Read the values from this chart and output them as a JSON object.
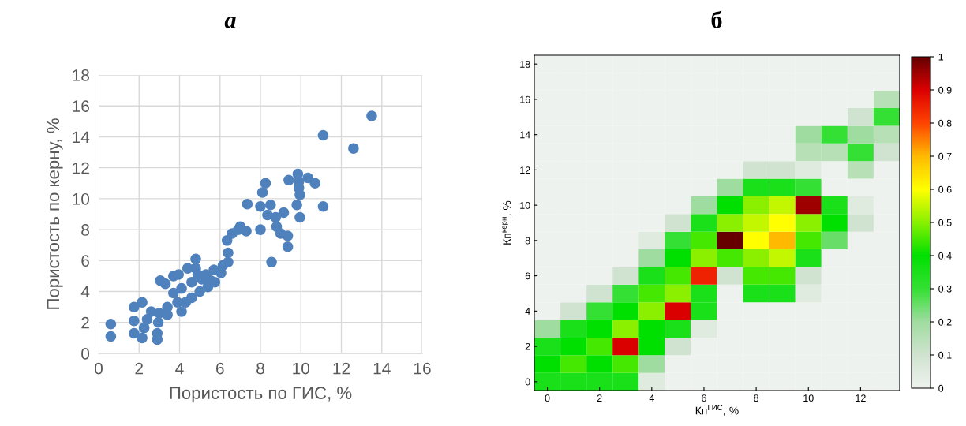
{
  "chart_data": [
    {
      "type": "scatter",
      "title": "а",
      "xlabel": "Пористость по ГИС, %",
      "ylabel": "Пористость по керну, %",
      "xlim": [
        0,
        16
      ],
      "ylim": [
        0,
        18
      ],
      "xticks": [
        0,
        2,
        4,
        6,
        8,
        10,
        12,
        14,
        16
      ],
      "yticks": [
        0,
        2,
        4,
        6,
        8,
        10,
        12,
        14,
        16,
        18
      ],
      "grid": true,
      "marker": "circle",
      "series": [
        {
          "color": "#4f81bd",
          "x": [
            0.6,
            0.6,
            1.75,
            2.15,
            1.75,
            1.75,
            2.15,
            2.25,
            2.4,
            2.6,
            2.9,
            2.9,
            2.95,
            3.0,
            3.05,
            3.3,
            3.4,
            3.4,
            3.7,
            3.7,
            3.95,
            3.9,
            4.1,
            4.1,
            4.3,
            4.4,
            4.6,
            4.6,
            4.8,
            4.8,
            4.9,
            5.0,
            5.1,
            5.3,
            5.4,
            5.55,
            5.7,
            5.75,
            6.05,
            6.15,
            6.4,
            6.4,
            6.35,
            6.6,
            6.9,
            7.0,
            7.3,
            7.35,
            8.0,
            8.0,
            8.1,
            8.25,
            8.5,
            8.35,
            8.75,
            8.8,
            9.0,
            9.35,
            9.35,
            8.55,
            9.15,
            9.4,
            9.85,
            9.9,
            9.9,
            9.95,
            9.8,
            9.95,
            10.35,
            10.7,
            11.1,
            11.1,
            12.6,
            13.5
          ],
          "values": [
            1.9,
            1.1,
            3.0,
            3.3,
            2.1,
            1.3,
            1.0,
            1.65,
            2.2,
            2.7,
            1.3,
            0.9,
            2.0,
            2.6,
            4.7,
            4.5,
            3.0,
            2.5,
            3.9,
            5.0,
            5.1,
            3.3,
            4.2,
            2.7,
            3.3,
            5.5,
            3.6,
            4.6,
            6.1,
            5.5,
            5.1,
            4.0,
            4.8,
            5.1,
            4.3,
            4.7,
            5.4,
            4.6,
            5.2,
            5.7,
            5.9,
            6.5,
            7.3,
            7.75,
            8.0,
            8.2,
            7.9,
            9.65,
            8.0,
            9.5,
            10.4,
            11.0,
            9.6,
            8.95,
            8.8,
            8.2,
            7.75,
            7.6,
            6.9,
            5.9,
            9.1,
            11.2,
            11.6,
            11.1,
            10.7,
            10.25,
            9.6,
            8.8,
            11.35,
            11.0,
            9.5,
            14.1,
            13.25,
            15.35
          ]
        }
      ]
    },
    {
      "type": "heatmap",
      "title": "б",
      "xlabel": "Кп$^{ГИС}$, %",
      "ylabel": "Кп$^{керн}$, %",
      "categories": [
        "0",
        null,
        "2",
        null,
        "4",
        null,
        "6",
        null,
        "8",
        null,
        "10",
        null,
        "12",
        null
      ],
      "y_categories": [
        "18",
        null,
        "16",
        null,
        "14",
        null,
        "12",
        null,
        "10",
        null,
        "8",
        null,
        "6",
        null,
        "4",
        null,
        "2",
        null,
        "0"
      ],
      "colors": [
        "#eef2ee",
        "#cfe3cf",
        "#9fdc9f",
        "#33e033",
        "#00e000",
        "#88f000",
        "#ffff00",
        "#ffbb00",
        "#ff4400",
        "#dd0000",
        "#660000"
      ],
      "clim": [
        0,
        1
      ],
      "cticks": [
        0,
        0.1,
        0.2,
        0.3,
        0.4,
        0.5,
        0.6,
        0.7,
        0.8,
        0.9,
        1
      ],
      "cells": [
        [
          0,
          0,
          0,
          0,
          0,
          0,
          0,
          0,
          0,
          0,
          0,
          0,
          0,
          0
        ],
        [
          0,
          0,
          0,
          0,
          0,
          0,
          0,
          0,
          0,
          0,
          0,
          0,
          0,
          0
        ],
        [
          0,
          0,
          0,
          0,
          0,
          0,
          0,
          0,
          0,
          0,
          0,
          0,
          0,
          0.15
        ],
        [
          0,
          0,
          0,
          0,
          0,
          0,
          0,
          0,
          0,
          0,
          0,
          0,
          0.1,
          0.3
        ],
        [
          0,
          0,
          0,
          0,
          0,
          0,
          0,
          0,
          0,
          0,
          0.2,
          0.3,
          0.2,
          0.15
        ],
        [
          0,
          0,
          0,
          0,
          0,
          0,
          0,
          0,
          0,
          0,
          0.15,
          0.15,
          0.3,
          0.1
        ],
        [
          0,
          0,
          0,
          0,
          0,
          0,
          0,
          0,
          0.1,
          0.1,
          0.05,
          0,
          0.15,
          0
        ],
        [
          0,
          0,
          0,
          0,
          0,
          0,
          0,
          0.2,
          0.35,
          0.35,
          0.3,
          0,
          0,
          0
        ],
        [
          0,
          0,
          0,
          0,
          0,
          0,
          0.2,
          0.4,
          0.5,
          0.55,
          0.95,
          0.35,
          0.05,
          0
        ],
        [
          0,
          0,
          0,
          0,
          0,
          0.1,
          0.35,
          0.5,
          0.55,
          0.6,
          0.5,
          0.4,
          0.1,
          0
        ],
        [
          0,
          0,
          0,
          0,
          0.05,
          0.3,
          0.45,
          1,
          0.6,
          0.7,
          0.45,
          0.25,
          0,
          0
        ],
        [
          0,
          0,
          0,
          0,
          0.2,
          0.4,
          0.5,
          0.45,
          0.5,
          0.55,
          0.35,
          0,
          0,
          0
        ],
        [
          0,
          0,
          0,
          0.1,
          0.35,
          0.45,
          0.85,
          0.1,
          0.45,
          0.45,
          0.1,
          0,
          0,
          0
        ],
        [
          0,
          0,
          0.1,
          0.3,
          0.45,
          0.5,
          0.35,
          0,
          0.35,
          0.35,
          0.05,
          0,
          0,
          0
        ],
        [
          0,
          0.1,
          0.3,
          0.4,
          0.5,
          0.9,
          0.35,
          0,
          0,
          0,
          0,
          0,
          0,
          0
        ],
        [
          0.2,
          0.35,
          0.4,
          0.5,
          0.4,
          0.35,
          0.05,
          0,
          0,
          0,
          0,
          0,
          0,
          0
        ],
        [
          0.35,
          0.4,
          0.45,
          0.9,
          0.4,
          0.1,
          0,
          0,
          0,
          0,
          0,
          0,
          0,
          0
        ],
        [
          0.4,
          0.45,
          0.4,
          0.45,
          0.2,
          0,
          0,
          0,
          0,
          0,
          0,
          0,
          0,
          0
        ],
        [
          0.35,
          0.35,
          0.35,
          0.35,
          0.05,
          0,
          0,
          0,
          0,
          0,
          0,
          0,
          0,
          0
        ]
      ]
    }
  ]
}
